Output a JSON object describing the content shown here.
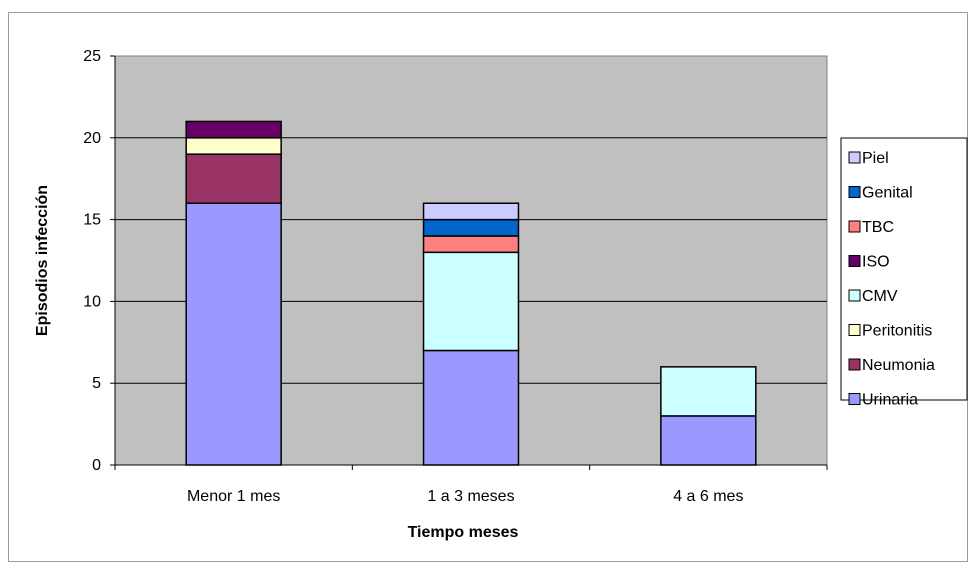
{
  "chart_data": {
    "type": "bar",
    "stacked": true,
    "categories": [
      "Menor 1 mes",
      "1 a 3 meses",
      "4 a 6 mes"
    ],
    "series": [
      {
        "name": "Urinaria",
        "color": "#9999FF",
        "values": [
          16,
          7,
          3
        ]
      },
      {
        "name": "Neumonia",
        "color": "#993366",
        "values": [
          3,
          0,
          0
        ]
      },
      {
        "name": "Peritonitis",
        "color": "#FFFFCC",
        "values": [
          1,
          0,
          0
        ]
      },
      {
        "name": "CMV",
        "color": "#CCFFFF",
        "values": [
          0,
          6,
          3
        ]
      },
      {
        "name": "ISO",
        "color": "#660066",
        "values": [
          1,
          0,
          0
        ]
      },
      {
        "name": "TBC",
        "color": "#FF8080",
        "values": [
          0,
          1,
          0
        ]
      },
      {
        "name": "Genital",
        "color": "#0066CC",
        "values": [
          0,
          1,
          0
        ]
      },
      {
        "name": "Piel",
        "color": "#CCCCFF",
        "values": [
          0,
          1,
          0
        ]
      }
    ],
    "legend_order": [
      "Piel",
      "Genital",
      "TBC",
      "ISO",
      "CMV",
      "Peritonitis",
      "Neumonia",
      "Urinaria"
    ],
    "xlabel": "Tiempo meses",
    "ylabel": "Episodios infección",
    "ylim": [
      0,
      25
    ],
    "yticks": [
      0,
      5,
      10,
      15,
      20,
      25
    ],
    "grid": true,
    "legend_position": "right",
    "plot_background": "#C0C0C0"
  }
}
